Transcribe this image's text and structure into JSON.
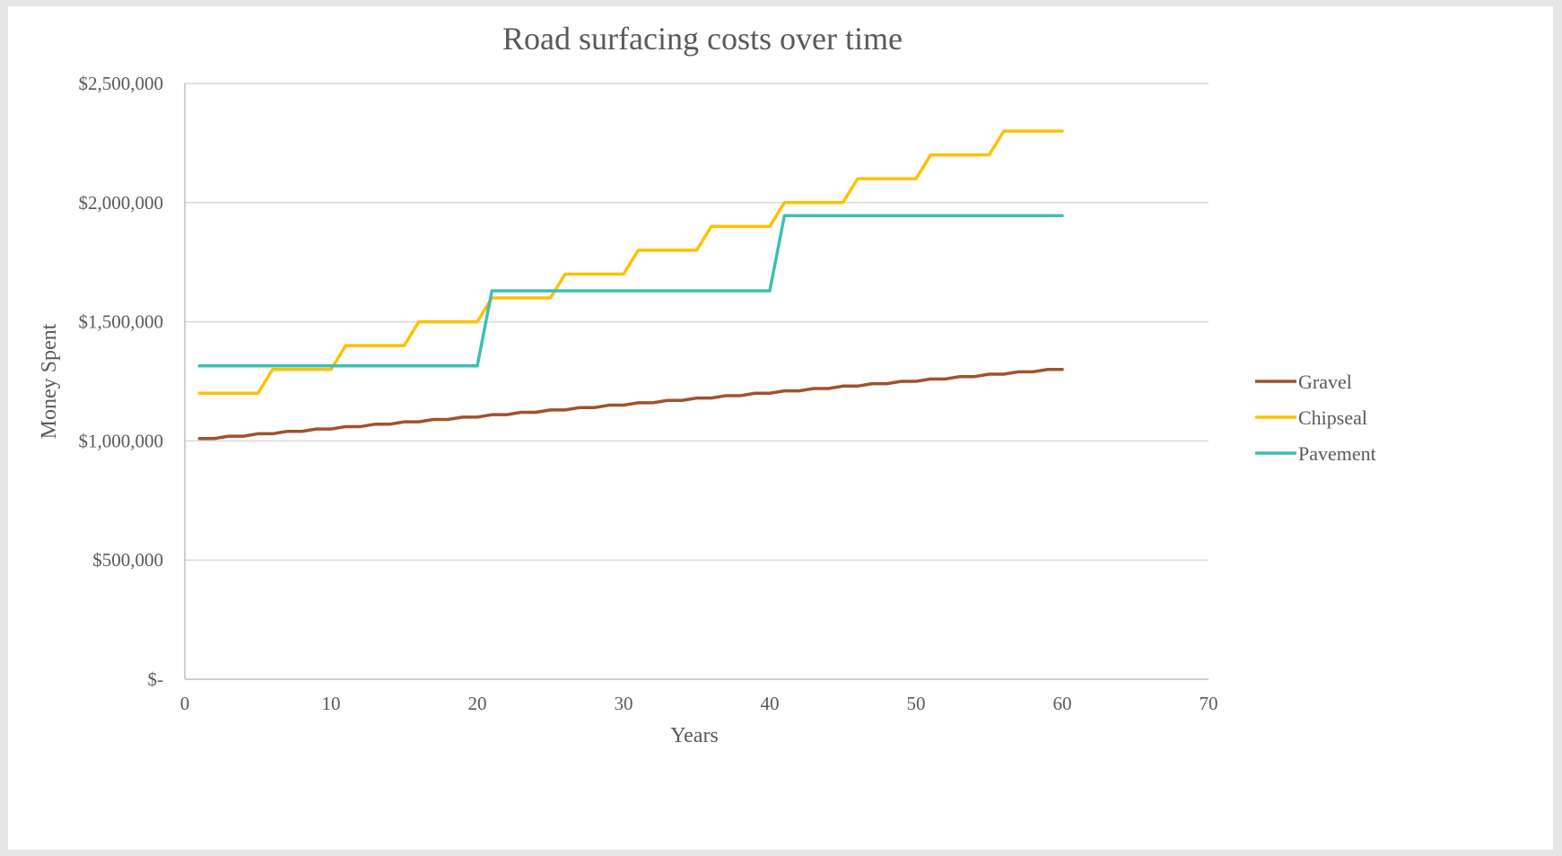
{
  "chart_data": {
    "type": "line",
    "title": "Road surfacing costs over time",
    "xlabel": "Years",
    "ylabel": "Money Spent",
    "xlim": [
      0,
      70
    ],
    "ylim": [
      0,
      2500000
    ],
    "x_ticks": [
      0,
      10,
      20,
      30,
      40,
      50,
      60,
      70
    ],
    "y_ticks": [
      0,
      500000,
      1000000,
      1500000,
      2000000,
      2500000
    ],
    "x_tick_labels": [
      "0",
      "10",
      "20",
      "30",
      "40",
      "50",
      "60",
      "70"
    ],
    "y_tick_labels": [
      "$-",
      "$500,000",
      "$1,000,000",
      "$1,500,000",
      "$2,000,000",
      "$2,500,000"
    ],
    "grid": "horizontal",
    "legend_position": "right",
    "x": [
      1,
      2,
      3,
      4,
      5,
      6,
      7,
      8,
      9,
      10,
      11,
      12,
      13,
      14,
      15,
      16,
      17,
      18,
      19,
      20,
      21,
      22,
      23,
      24,
      25,
      26,
      27,
      28,
      29,
      30,
      31,
      32,
      33,
      34,
      35,
      36,
      37,
      38,
      39,
      40,
      41,
      42,
      43,
      44,
      45,
      46,
      47,
      48,
      49,
      50,
      51,
      52,
      53,
      54,
      55,
      56,
      57,
      58,
      59,
      60
    ],
    "series": [
      {
        "name": "Gravel",
        "color": "#a0522d",
        "values": [
          1010000,
          1010000,
          1020000,
          1020000,
          1030000,
          1030000,
          1040000,
          1040000,
          1050000,
          1050000,
          1060000,
          1060000,
          1070000,
          1070000,
          1080000,
          1080000,
          1090000,
          1090000,
          1100000,
          1100000,
          1110000,
          1110000,
          1120000,
          1120000,
          1130000,
          1130000,
          1140000,
          1140000,
          1150000,
          1150000,
          1160000,
          1160000,
          1170000,
          1170000,
          1180000,
          1180000,
          1190000,
          1190000,
          1200000,
          1200000,
          1210000,
          1210000,
          1220000,
          1220000,
          1230000,
          1230000,
          1240000,
          1240000,
          1250000,
          1250000,
          1260000,
          1260000,
          1270000,
          1270000,
          1280000,
          1280000,
          1290000,
          1290000,
          1300000,
          1300000
        ]
      },
      {
        "name": "Chipseal",
        "color": "#ffc000",
        "values": [
          1200000,
          1200000,
          1200000,
          1200000,
          1200000,
          1300000,
          1300000,
          1300000,
          1300000,
          1300000,
          1400000,
          1400000,
          1400000,
          1400000,
          1400000,
          1500000,
          1500000,
          1500000,
          1500000,
          1500000,
          1600000,
          1600000,
          1600000,
          1600000,
          1600000,
          1700000,
          1700000,
          1700000,
          1700000,
          1700000,
          1800000,
          1800000,
          1800000,
          1800000,
          1800000,
          1900000,
          1900000,
          1900000,
          1900000,
          1900000,
          2000000,
          2000000,
          2000000,
          2000000,
          2000000,
          2100000,
          2100000,
          2100000,
          2100000,
          2100000,
          2200000,
          2200000,
          2200000,
          2200000,
          2200000,
          2300000,
          2300000,
          2300000,
          2300000,
          2300000
        ]
      },
      {
        "name": "Pavement",
        "color": "#3cbfb4",
        "values": [
          1315000,
          1315000,
          1315000,
          1315000,
          1315000,
          1315000,
          1315000,
          1315000,
          1315000,
          1315000,
          1315000,
          1315000,
          1315000,
          1315000,
          1315000,
          1315000,
          1315000,
          1315000,
          1315000,
          1315000,
          1630000,
          1630000,
          1630000,
          1630000,
          1630000,
          1630000,
          1630000,
          1630000,
          1630000,
          1630000,
          1630000,
          1630000,
          1630000,
          1630000,
          1630000,
          1630000,
          1630000,
          1630000,
          1630000,
          1630000,
          1945000,
          1945000,
          1945000,
          1945000,
          1945000,
          1945000,
          1945000,
          1945000,
          1945000,
          1945000,
          1945000,
          1945000,
          1945000,
          1945000,
          1945000,
          1945000,
          1945000,
          1945000,
          1945000,
          1945000
        ]
      }
    ]
  }
}
